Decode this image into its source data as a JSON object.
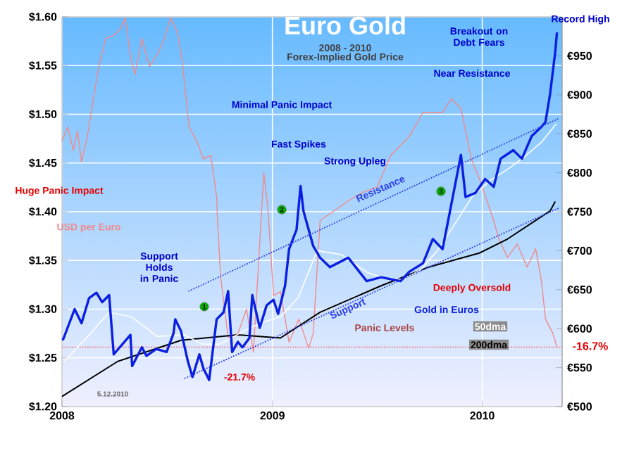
{
  "chart_data": {
    "type": "line",
    "title": "Euro Gold",
    "subtitle": "2008 - 2010",
    "xlim": [
      "2008-01-01",
      "2010-05-20"
    ],
    "xticks": [
      {
        "value": "2008-01-01",
        "label": "2008"
      },
      {
        "value": "2009-01-01",
        "label": "2009"
      },
      {
        "value": "2010-01-01",
        "label": "2010"
      }
    ],
    "ylim": [
      1.2,
      1.6
    ],
    "yticks": [
      {
        "value": 1.2,
        "label": "$1.20"
      },
      {
        "value": 1.25,
        "label": "$1.25"
      },
      {
        "value": 1.3,
        "label": "$1.30"
      },
      {
        "value": 1.35,
        "label": "$1.35"
      },
      {
        "value": 1.4,
        "label": "$1.40"
      },
      {
        "value": 1.45,
        "label": "$1.45"
      },
      {
        "value": 1.5,
        "label": "$1.50"
      },
      {
        "value": 1.55,
        "label": "$1.55"
      },
      {
        "value": 1.6,
        "label": "$1.60"
      }
    ],
    "y2lim": [
      500,
      1000
    ],
    "y2ticks": [
      {
        "value": 500,
        "label": "€500"
      },
      {
        "value": 550,
        "label": "€550"
      },
      {
        "value": 600,
        "label": "€600"
      },
      {
        "value": 650,
        "label": "€650"
      },
      {
        "value": 700,
        "label": "€700"
      },
      {
        "value": 750,
        "label": "€750"
      },
      {
        "value": 800,
        "label": "€800"
      },
      {
        "value": 850,
        "label": "€850"
      },
      {
        "value": 900,
        "label": "€900"
      },
      {
        "value": 950,
        "label": "€950"
      }
    ],
    "grid": true,
    "series": [
      {
        "name": "USD per Euro",
        "color": "#f08a8a",
        "x": [
          "2008-01-01",
          "2008-01-11",
          "2008-01-21",
          "2008-01-28",
          "2008-02-04",
          "2008-02-14",
          "2008-02-26",
          "2008-03-05",
          "2008-03-17",
          "2008-03-31",
          "2008-04-12",
          "2008-04-20",
          "2008-04-29",
          "2008-05-07",
          "2008-05-19",
          "2008-06-01",
          "2008-06-13",
          "2008-06-25",
          "2008-07-08",
          "2008-07-20",
          "2008-07-28",
          "2008-08-09",
          "2008-08-22",
          "2008-09-03",
          "2008-09-16",
          "2008-09-26",
          "2008-09-28",
          "2008-10-03",
          "2008-10-16",
          "2008-11-02",
          "2008-11-17",
          "2008-11-29",
          "2008-12-17",
          "2008-12-24",
          "2009-01-03",
          "2009-01-15",
          "2009-01-30",
          "2009-02-16",
          "2009-03-05",
          "2009-03-13",
          "2009-03-25",
          "2009-05-13",
          "2009-06-07",
          "2009-07-02",
          "2009-07-26",
          "2009-08-27",
          "2009-09-20",
          "2009-10-24",
          "2009-11-08",
          "2009-11-25",
          "2009-12-13",
          "2009-12-27",
          "2010-01-21",
          "2010-01-30",
          "2010-02-14",
          "2010-03-03",
          "2010-03-20",
          "2010-04-04",
          "2010-04-14",
          "2010-04-21",
          "2010-05-04",
          "2010-05-11"
        ],
        "values": [
          1.473,
          1.487,
          1.463,
          1.483,
          1.451,
          1.477,
          1.521,
          1.549,
          1.578,
          1.581,
          1.588,
          1.599,
          1.56,
          1.541,
          1.578,
          1.549,
          1.56,
          1.574,
          1.599,
          1.584,
          1.555,
          1.487,
          1.473,
          1.454,
          1.458,
          1.415,
          1.386,
          1.333,
          1.271,
          1.275,
          1.3,
          1.256,
          1.44,
          1.405,
          1.314,
          1.318,
          1.266,
          1.29,
          1.26,
          1.275,
          1.391,
          1.411,
          1.42,
          1.425,
          1.458,
          1.477,
          1.502,
          1.502,
          1.516,
          1.506,
          1.454,
          1.434,
          1.391,
          1.372,
          1.353,
          1.367,
          1.343,
          1.362,
          1.329,
          1.29,
          1.275,
          1.261
        ]
      },
      {
        "name": "200dma",
        "color": "#000000",
        "axis": "y2",
        "x": [
          "2008-01-01",
          "2008-04-07",
          "2008-07-26",
          "2008-11-02",
          "2009-01-15",
          "2009-03-25",
          "2009-07-09",
          "2009-09-30",
          "2009-12-27",
          "2010-02-14",
          "2010-04-29",
          "2010-05-08"
        ],
        "values": [
          513,
          558,
          585,
          592,
          588,
          621,
          655,
          679,
          697,
          715,
          751,
          763
        ]
      },
      {
        "name": "50dma",
        "color": "#ffffff",
        "axis": "y2",
        "x": [
          "2008-01-05",
          "2008-02-15",
          "2008-03-23",
          "2008-05-01",
          "2008-06-15",
          "2008-08-01",
          "2008-09-01",
          "2008-10-01",
          "2008-11-15",
          "2008-12-15",
          "2009-01-15",
          "2009-02-15",
          "2009-03-20",
          "2009-05-01",
          "2009-06-15",
          "2009-07-15",
          "2009-08-15",
          "2009-09-15",
          "2009-10-15",
          "2009-11-15",
          "2009-12-15",
          "2010-01-15",
          "2010-02-15",
          "2010-03-15",
          "2010-04-15",
          "2010-05-10"
        ],
        "values": [
          558,
          590,
          621,
          615,
          590,
          592,
          580,
          580,
          598,
          608,
          615,
          640,
          700,
          695,
          672,
          665,
          663,
          675,
          700,
          735,
          770,
          790,
          805,
          820,
          840,
          863
        ]
      },
      {
        "name": "Gold in Euros",
        "color": "#0a1fe0",
        "axis": "y2",
        "x": [
          "2008-01-02",
          "2008-01-04",
          "2008-01-23",
          "2008-02-04",
          "2008-02-17",
          "2008-03-01",
          "2008-03-11",
          "2008-03-23",
          "2008-03-31",
          "2008-04-29",
          "2008-05-02",
          "2008-05-19",
          "2008-05-27",
          "2008-06-13",
          "2008-07-01",
          "2008-07-13",
          "2008-07-16",
          "2008-07-26",
          "2008-08-07",
          "2008-08-15",
          "2008-08-27",
          "2008-09-03",
          "2008-09-13",
          "2008-09-26",
          "2008-10-08",
          "2008-10-16",
          "2008-10-23",
          "2008-11-02",
          "2008-11-10",
          "2008-11-22",
          "2008-11-27",
          "2008-12-10",
          "2008-12-22",
          "2009-01-03",
          "2009-01-11",
          "2009-01-23",
          "2009-01-30",
          "2009-02-12",
          "2009-02-19",
          "2009-02-24",
          "2009-03-13",
          "2009-03-25",
          "2009-04-11",
          "2009-05-13",
          "2009-06-14",
          "2009-07-09",
          "2009-08-12",
          "2009-08-27",
          "2009-09-20",
          "2009-10-07",
          "2009-10-24",
          "2009-11-06",
          "2009-11-25",
          "2009-12-03",
          "2009-12-20",
          "2010-01-06",
          "2010-01-21",
          "2010-02-02",
          "2010-02-24",
          "2010-03-11",
          "2010-03-28",
          "2010-04-14",
          "2010-04-21",
          "2010-04-29",
          "2010-05-08",
          "2010-05-11"
        ],
        "values": [
          585,
          588,
          625,
          607,
          639,
          646,
          634,
          643,
          567,
          592,
          552,
          576,
          565,
          574,
          570,
          594,
          612,
          597,
          558,
          538,
          567,
          549,
          534,
          612,
          621,
          648,
          570,
          583,
          576,
          588,
          643,
          601,
          630,
          637,
          619,
          655,
          702,
          727,
          783,
          751,
          706,
          691,
          679,
          691,
          661,
          666,
          661,
          673,
          684,
          715,
          702,
          751,
          823,
          769,
          774,
          792,
          782,
          818,
          829,
          818,
          847,
          859,
          865,
          901,
          955,
          980
        ]
      },
      {
        "name": "Resistance",
        "color": "#2a3de8",
        "axis": "y2",
        "line_style": "dotted",
        "x": [
          "2008-08-08",
          "2010-05-15"
        ],
        "values": [
          648,
          870
        ]
      },
      {
        "name": "Support",
        "color": "#2a3de8",
        "axis": "y2",
        "line_style": "dotted",
        "x": [
          "2008-08-01",
          "2010-05-15"
        ],
        "values": [
          536,
          755
        ]
      }
    ],
    "ref_lines": [
      {
        "axis": "y",
        "value": 1.261,
        "label": "Panic Levels",
        "color": "#f06060",
        "line_style": "dotted"
      }
    ],
    "annotations": [
      "Forex-Implied Gold Price",
      "Huge Panic Impact",
      "Minimal Panic Impact",
      "Fast Spikes",
      "Strong Upleg",
      "Support Holds in Panic",
      "Near Resistance",
      "Breakout on Debt Fears",
      "Record High",
      "Deeply Oversold",
      "-21.7%",
      "-16.7%",
      "5.12.2010",
      "1",
      "2",
      "3"
    ]
  }
}
